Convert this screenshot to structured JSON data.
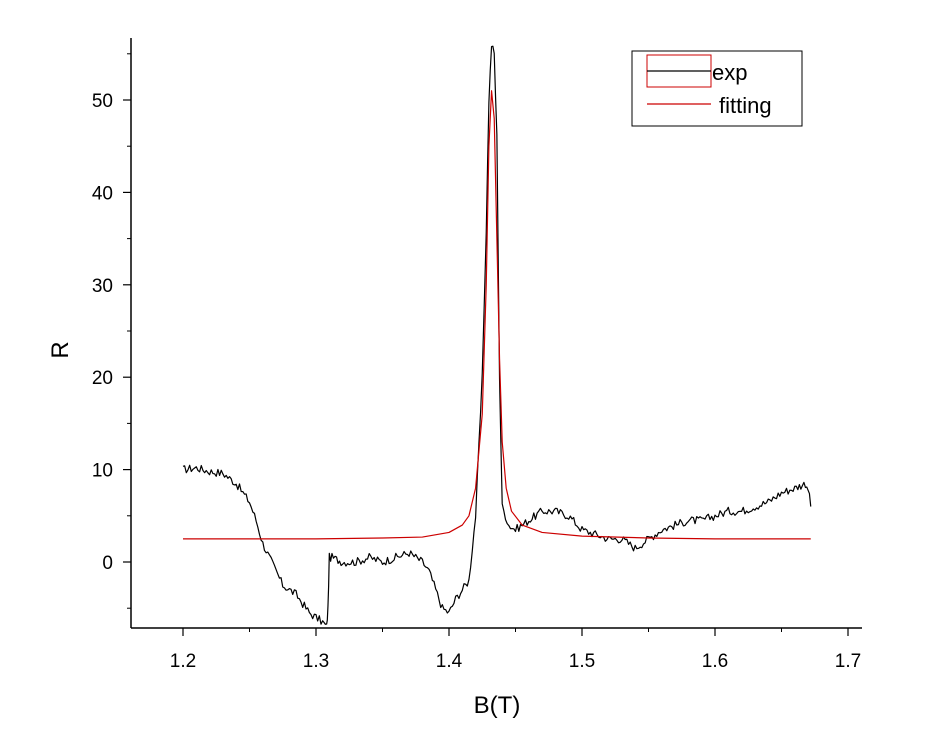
{
  "chart_data": {
    "type": "line",
    "title": "",
    "xlabel": "B(T)",
    "ylabel": "R",
    "xlim": [
      1.16,
      1.71
    ],
    "ylim": [
      -7,
      57
    ],
    "xticks": [
      1.2,
      1.3,
      1.4,
      1.5,
      1.6,
      1.7
    ],
    "xtick_labels": [
      "1.2",
      "1.3",
      "1.4",
      "1.5",
      "1.6",
      "1.7"
    ],
    "yticks": [
      0,
      10,
      20,
      30,
      40,
      50
    ],
    "ytick_labels": [
      "0",
      "10",
      "20",
      "30",
      "40",
      "50"
    ],
    "grid": false,
    "legend": "top-right",
    "series": [
      {
        "name": "exp",
        "color": "#000000",
        "x": [
          1.2,
          1.21,
          1.22,
          1.23,
          1.24,
          1.25,
          1.255,
          1.26,
          1.265,
          1.27,
          1.275,
          1.28,
          1.285,
          1.29,
          1.295,
          1.3,
          1.305,
          1.308,
          1.309,
          1.31,
          1.312,
          1.32,
          1.33,
          1.34,
          1.35,
          1.36,
          1.37,
          1.375,
          1.38,
          1.385,
          1.39,
          1.395,
          1.4,
          1.405,
          1.41,
          1.415,
          1.42,
          1.425,
          1.428,
          1.43,
          1.432,
          1.434,
          1.436,
          1.438,
          1.44,
          1.445,
          1.45,
          1.455,
          1.46,
          1.465,
          1.47,
          1.48,
          1.49,
          1.5,
          1.51,
          1.52,
          1.53,
          1.54,
          1.545,
          1.55,
          1.56,
          1.57,
          1.58,
          1.59,
          1.6,
          1.61,
          1.62,
          1.63,
          1.64,
          1.65,
          1.66,
          1.668,
          1.67,
          1.672
        ],
        "y": [
          10,
          10.2,
          9.8,
          9.6,
          8.5,
          6.5,
          4.5,
          2,
          0.5,
          -1,
          -2.5,
          -3,
          -3.5,
          -4.5,
          -5.5,
          -6,
          -6.5,
          -7,
          -5,
          0.5,
          0.5,
          0,
          0,
          0.5,
          0,
          0.5,
          1,
          0.5,
          0,
          -1,
          -3,
          -5,
          -5.5,
          -4,
          -3,
          -2,
          5,
          20,
          36,
          50,
          56,
          55,
          46,
          20,
          6,
          4,
          3.5,
          4,
          4.5,
          5,
          5.5,
          5.5,
          5,
          3.5,
          3,
          2.5,
          2.5,
          1.5,
          2,
          2.5,
          3.5,
          4,
          4.5,
          4.5,
          5,
          5.5,
          5.5,
          6,
          6.5,
          7.5,
          8,
          8.5,
          8,
          6
        ]
      },
      {
        "name": "fitting",
        "color": "#cc0000",
        "x": [
          1.2,
          1.25,
          1.3,
          1.35,
          1.38,
          1.4,
          1.41,
          1.415,
          1.42,
          1.425,
          1.428,
          1.43,
          1.432,
          1.434,
          1.436,
          1.438,
          1.44,
          1.443,
          1.447,
          1.455,
          1.47,
          1.5,
          1.55,
          1.6,
          1.672
        ],
        "y": [
          2.5,
          2.5,
          2.5,
          2.6,
          2.7,
          3.2,
          4,
          5,
          8,
          16,
          30,
          45,
          51,
          48,
          35,
          22,
          13,
          8,
          5.5,
          4,
          3.2,
          2.8,
          2.6,
          2.5,
          2.5
        ]
      }
    ]
  }
}
